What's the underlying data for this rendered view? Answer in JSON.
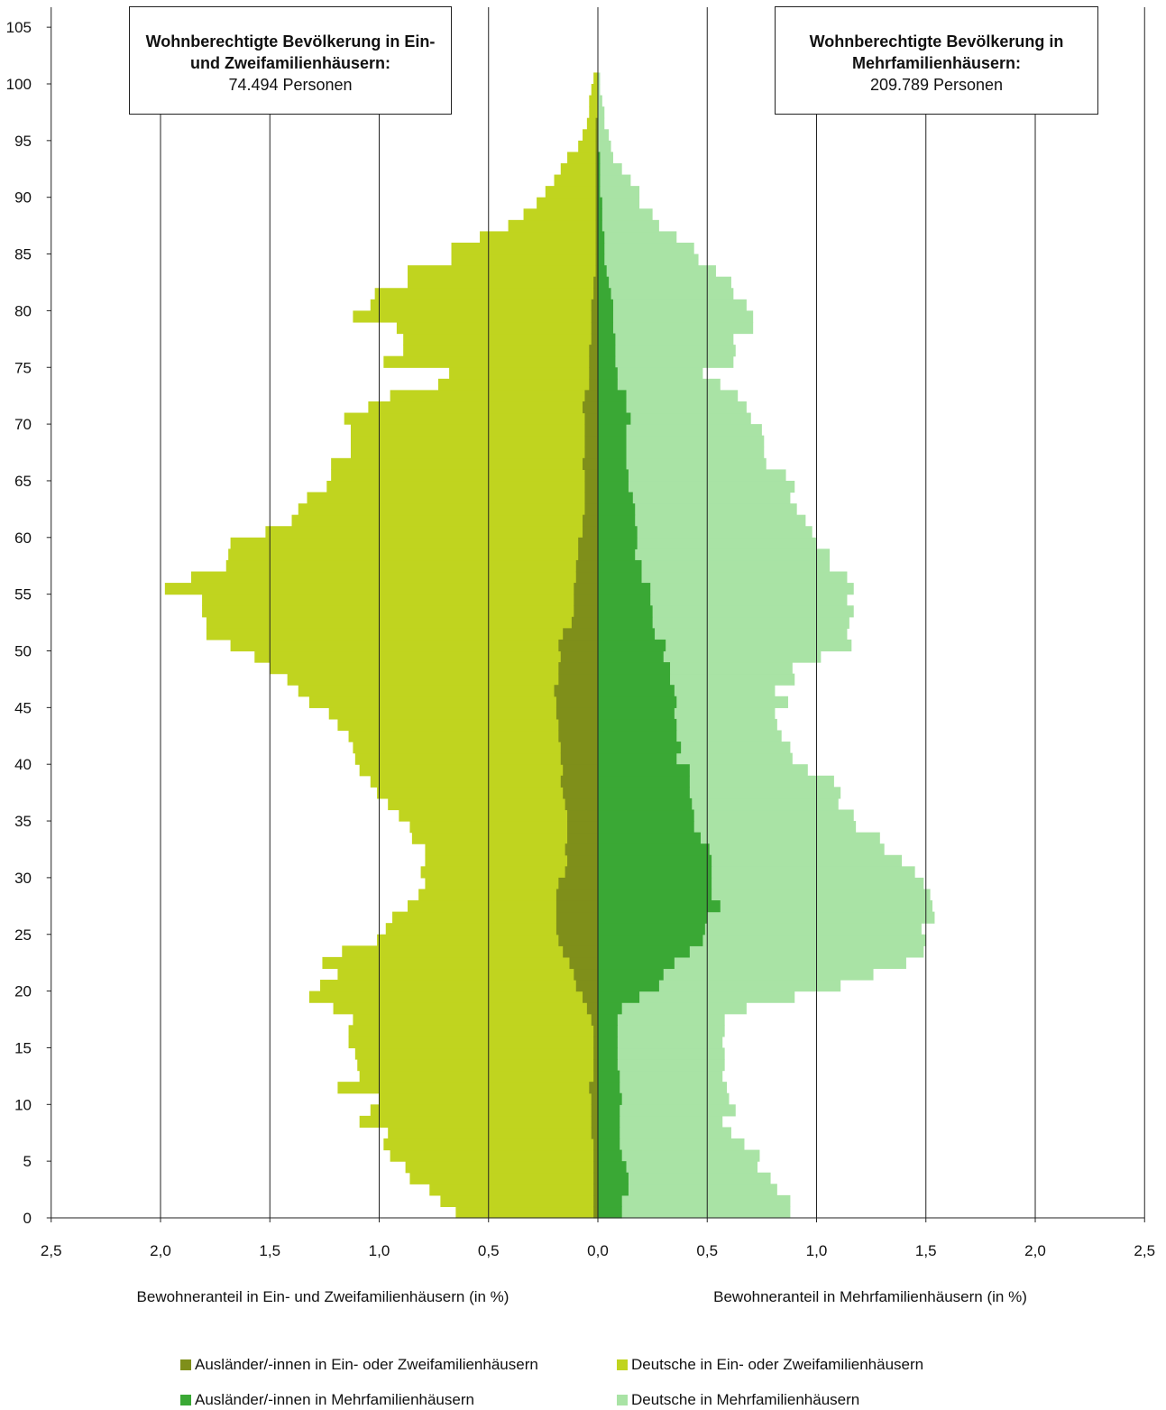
{
  "chart_data": {
    "type": "population-pyramid",
    "title_left": "Wohnberechtigte Bevölkerung in Ein- und Zweifamilienhäusern:",
    "value_left": "74.494 Personen",
    "title_right": "Wohnberechtigte Bevölkerung in Mehrfamilienhäusern:",
    "value_right": "209.789 Personen",
    "xlabel_left": "Bewohneranteil in Ein- und Zweifamilienhäusern (in %)",
    "xlabel_right": "Bewohneranteil in Mehrfamilienhäusern (in %)",
    "x_ticks": [
      "2,5",
      "2,0",
      "1,5",
      "1,0",
      "0,5",
      "0,0",
      "0,5",
      "1,0",
      "1,5",
      "2,0",
      "2,5"
    ],
    "xlim_each_side": [
      0,
      2.5
    ],
    "y_ticks": [
      "0",
      "5",
      "10",
      "15",
      "20",
      "25",
      "30",
      "35",
      "40",
      "45",
      "50",
      "55",
      "60",
      "65",
      "70",
      "75",
      "80",
      "85",
      "90",
      "95",
      "100",
      "105"
    ],
    "ylim": [
      0,
      106
    ],
    "age": [
      0,
      1,
      2,
      3,
      4,
      5,
      6,
      7,
      8,
      9,
      10,
      11,
      12,
      13,
      14,
      15,
      16,
      17,
      18,
      19,
      20,
      21,
      22,
      23,
      24,
      25,
      26,
      27,
      28,
      29,
      30,
      31,
      32,
      33,
      34,
      35,
      36,
      37,
      38,
      39,
      40,
      41,
      42,
      43,
      44,
      45,
      46,
      47,
      48,
      49,
      50,
      51,
      52,
      53,
      54,
      55,
      56,
      57,
      58,
      59,
      60,
      61,
      62,
      63,
      64,
      65,
      66,
      67,
      68,
      69,
      70,
      71,
      72,
      73,
      74,
      75,
      76,
      77,
      78,
      79,
      80,
      81,
      82,
      83,
      84,
      85,
      86,
      87,
      88,
      89,
      90,
      91,
      92,
      93,
      94,
      95,
      96,
      97,
      98,
      99,
      100
    ],
    "series": [
      {
        "name": "Ausländer/-innen in Ein- oder Zweifamilienhäusern",
        "color": "#7f8f1a",
        "side": "left",
        "values": [
          0.02,
          0.02,
          0.02,
          0.02,
          0.02,
          0.02,
          0.02,
          0.03,
          0.03,
          0.03,
          0.03,
          0.04,
          0.02,
          0.02,
          0.02,
          0.02,
          0.02,
          0.03,
          0.05,
          0.07,
          0.1,
          0.11,
          0.13,
          0.16,
          0.18,
          0.19,
          0.19,
          0.19,
          0.19,
          0.18,
          0.15,
          0.14,
          0.15,
          0.14,
          0.14,
          0.14,
          0.15,
          0.16,
          0.17,
          0.16,
          0.17,
          0.17,
          0.18,
          0.18,
          0.19,
          0.19,
          0.2,
          0.18,
          0.18,
          0.17,
          0.18,
          0.16,
          0.12,
          0.11,
          0.11,
          0.11,
          0.1,
          0.1,
          0.09,
          0.09,
          0.07,
          0.07,
          0.06,
          0.06,
          0.06,
          0.06,
          0.07,
          0.06,
          0.06,
          0.06,
          0.06,
          0.07,
          0.06,
          0.04,
          0.04,
          0.04,
          0.04,
          0.03,
          0.03,
          0.03,
          0.03,
          0.02,
          0.02,
          0.01,
          0.01,
          0.01,
          0.01,
          0.01,
          0.01,
          0.01,
          0.01,
          0.01,
          0.01,
          0.01,
          0.01,
          0.01,
          0.01,
          0.0,
          0.0,
          0.0,
          0.0
        ]
      },
      {
        "name": "Deutsche in Ein- oder Zweifamilienhäusern",
        "color": "#c0d41f",
        "side": "left",
        "values": [
          0.65,
          0.72,
          0.77,
          0.86,
          0.88,
          0.95,
          0.98,
          0.96,
          1.09,
          1.04,
          1.0,
          1.19,
          1.09,
          1.1,
          1.11,
          1.14,
          1.14,
          1.12,
          1.21,
          1.32,
          1.27,
          1.19,
          1.26,
          1.17,
          1.01,
          0.97,
          0.94,
          0.87,
          0.82,
          0.79,
          0.81,
          0.79,
          0.79,
          0.85,
          0.86,
          0.91,
          0.96,
          1.01,
          1.04,
          1.09,
          1.11,
          1.12,
          1.14,
          1.19,
          1.23,
          1.32,
          1.37,
          1.42,
          1.5,
          1.57,
          1.68,
          1.79,
          1.79,
          1.81,
          1.81,
          1.98,
          1.86,
          1.7,
          1.69,
          1.68,
          1.52,
          1.4,
          1.37,
          1.33,
          1.24,
          1.22,
          1.22,
          1.13,
          1.13,
          1.13,
          1.16,
          1.05,
          0.95,
          0.73,
          0.68,
          0.98,
          0.89,
          0.89,
          0.92,
          1.12,
          1.04,
          1.02,
          0.87,
          0.87,
          0.67,
          0.67,
          0.54,
          0.41,
          0.34,
          0.28,
          0.24,
          0.2,
          0.17,
          0.14,
          0.09,
          0.07,
          0.05,
          0.04,
          0.04,
          0.03,
          0.02
        ]
      },
      {
        "name": "Ausländer/-innen in Mehrfamilienhäusern",
        "color": "#3aa835",
        "side": "right",
        "values": [
          0.11,
          0.11,
          0.14,
          0.14,
          0.13,
          0.11,
          0.1,
          0.1,
          0.1,
          0.1,
          0.11,
          0.1,
          0.1,
          0.09,
          0.09,
          0.09,
          0.09,
          0.09,
          0.11,
          0.19,
          0.28,
          0.3,
          0.35,
          0.42,
          0.48,
          0.49,
          0.5,
          0.56,
          0.52,
          0.52,
          0.52,
          0.52,
          0.51,
          0.47,
          0.44,
          0.44,
          0.43,
          0.42,
          0.42,
          0.42,
          0.36,
          0.38,
          0.36,
          0.36,
          0.35,
          0.36,
          0.35,
          0.33,
          0.33,
          0.3,
          0.31,
          0.26,
          0.25,
          0.25,
          0.24,
          0.24,
          0.2,
          0.2,
          0.17,
          0.18,
          0.18,
          0.17,
          0.17,
          0.16,
          0.14,
          0.14,
          0.13,
          0.13,
          0.13,
          0.13,
          0.15,
          0.13,
          0.13,
          0.09,
          0.09,
          0.08,
          0.08,
          0.08,
          0.07,
          0.07,
          0.07,
          0.06,
          0.05,
          0.04,
          0.03,
          0.03,
          0.03,
          0.02,
          0.02,
          0.02,
          0.01,
          0.01,
          0.01,
          0.01,
          0.0,
          0.0,
          0.0,
          0.0,
          0.0,
          0.0,
          0.0
        ]
      },
      {
        "name": "Deutsche in Mehrfamilienhäusern",
        "color": "#a9e3a5",
        "side": "right",
        "values": [
          0.88,
          0.88,
          0.82,
          0.79,
          0.73,
          0.74,
          0.67,
          0.61,
          0.57,
          0.63,
          0.6,
          0.59,
          0.57,
          0.58,
          0.58,
          0.57,
          0.58,
          0.58,
          0.68,
          0.9,
          1.11,
          1.26,
          1.41,
          1.49,
          1.5,
          1.48,
          1.54,
          1.53,
          1.52,
          1.49,
          1.45,
          1.39,
          1.31,
          1.29,
          1.18,
          1.17,
          1.1,
          1.11,
          1.08,
          0.96,
          0.89,
          0.88,
          0.84,
          0.82,
          0.81,
          0.87,
          0.81,
          0.9,
          0.89,
          1.02,
          1.16,
          1.14,
          1.15,
          1.17,
          1.14,
          1.17,
          1.14,
          1.06,
          1.06,
          1.0,
          0.98,
          0.95,
          0.91,
          0.88,
          0.9,
          0.86,
          0.77,
          0.76,
          0.76,
          0.75,
          0.7,
          0.68,
          0.64,
          0.56,
          0.48,
          0.62,
          0.63,
          0.62,
          0.71,
          0.71,
          0.68,
          0.62,
          0.61,
          0.54,
          0.46,
          0.44,
          0.36,
          0.28,
          0.25,
          0.19,
          0.19,
          0.15,
          0.11,
          0.07,
          0.06,
          0.05,
          0.03,
          0.03,
          0.02,
          0.01,
          0.01
        ]
      }
    ]
  },
  "legend": [
    {
      "label": "Ausländer/-innen in Ein- oder Zweifamilienhäusern",
      "color": "#7f8f1a"
    },
    {
      "label": "Deutsche in Ein- oder Zweifamilienhäusern",
      "color": "#c0d41f"
    },
    {
      "label": "Ausländer/-innen in Mehrfamilienhäusern",
      "color": "#3aa835"
    },
    {
      "label": "Deutsche in Mehrfamilienhäusern",
      "color": "#a9e3a5"
    }
  ]
}
